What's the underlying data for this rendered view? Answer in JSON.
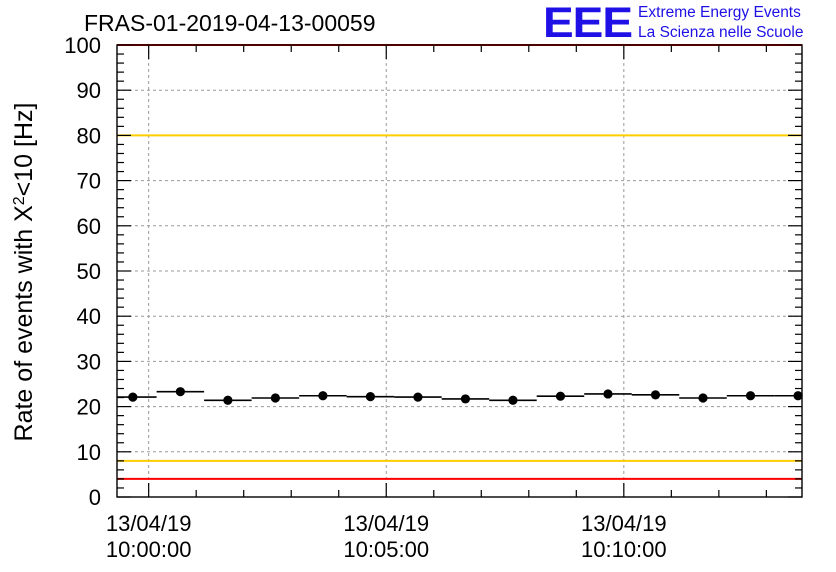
{
  "title": "FRAS-01-2019-04-13-00059",
  "logo": {
    "letters": "EEE",
    "line1": "Extreme Energy Events",
    "line2": "La Scienza nelle Scuole"
  },
  "chart_data": {
    "type": "scatter",
    "title": "FRAS-01-2019-04-13-00059",
    "ylabel_main": "Rate of events with X",
    "ylabel_sup": "2",
    "ylabel_tail": "<10 [Hz]",
    "xlabel": "",
    "ylim": [
      0,
      100
    ],
    "y_ticks": [
      "0",
      "10",
      "20",
      "30",
      "40",
      "50",
      "60",
      "70",
      "80",
      "90",
      "100"
    ],
    "x_range_seconds": [
      -40,
      825
    ],
    "x_ticks": [
      {
        "date": "13/04/19",
        "time": "10:00:00",
        "seconds": 0
      },
      {
        "date": "13/04/19",
        "time": "10:05:00",
        "seconds": 300
      },
      {
        "date": "13/04/19",
        "time": "10:10:00",
        "seconds": 600
      }
    ],
    "bin_width_seconds": 60,
    "series": [
      {
        "x_seconds": [
          -20,
          40,
          100,
          160,
          220,
          280,
          340,
          400,
          460,
          520,
          580,
          640,
          700,
          760,
          820
        ],
        "y": [
          22.1,
          23.3,
          21.4,
          21.9,
          22.4,
          22.2,
          22.1,
          21.7,
          21.4,
          22.3,
          22.8,
          22.6,
          21.9,
          22.4,
          22.4
        ],
        "y_err": [
          0.6,
          0.6,
          0.6,
          0.6,
          0.6,
          0.6,
          0.6,
          0.6,
          0.6,
          0.6,
          0.6,
          0.6,
          0.6,
          0.6,
          0.6
        ]
      }
    ],
    "reference_lines": [
      {
        "y": 100,
        "color": "#ff0000"
      },
      {
        "y": 80,
        "color": "#ffcc00"
      },
      {
        "y": 8,
        "color": "#ffcc00"
      },
      {
        "y": 4,
        "color": "#ff0000"
      }
    ],
    "grid": true
  }
}
